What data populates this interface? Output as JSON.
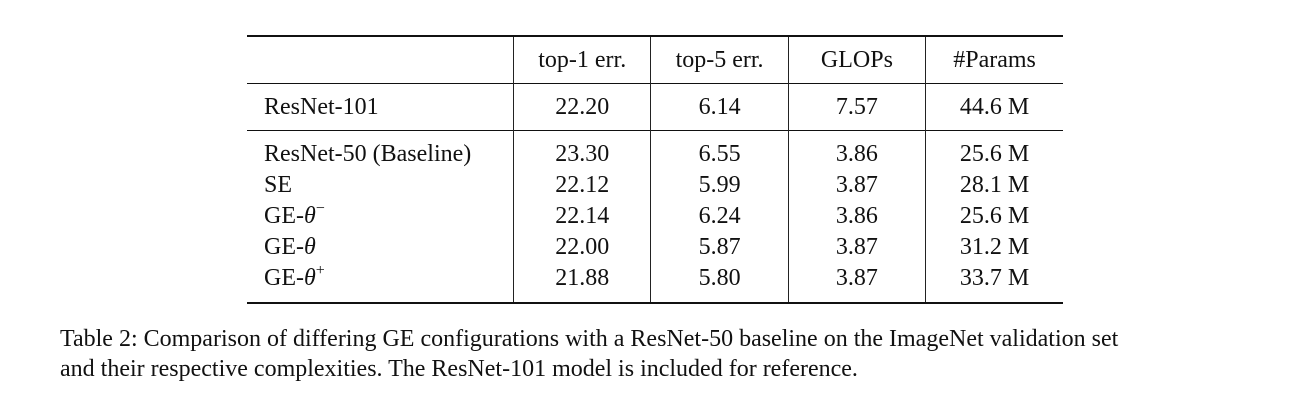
{
  "table": {
    "headers": [
      "",
      "top-1 err.",
      "top-5 err.",
      "GLOPs",
      "#Params"
    ],
    "reference_rows": [
      {
        "model": "ResNet-101",
        "top1": "22.20",
        "top5": "6.14",
        "glops": "7.57",
        "params": "44.6 M"
      }
    ],
    "rows": [
      {
        "model": "ResNet-50 (Baseline)",
        "top1": "23.30",
        "top5": "6.55",
        "glops": "3.86",
        "params": "25.6 M"
      },
      {
        "model": "SE",
        "top1": "22.12",
        "top5": "5.99",
        "glops": "3.87",
        "params": "28.1 M"
      },
      {
        "model_prefix": "GE-",
        "model_symbol": "θ",
        "model_modifier": "−",
        "top1": "22.14",
        "top5": "6.24",
        "glops": "3.86",
        "params": "25.6 M"
      },
      {
        "model_prefix": "GE-",
        "model_symbol": "θ",
        "model_modifier": "",
        "top1": "22.00",
        "top5": "5.87",
        "glops": "3.87",
        "params": "31.2 M"
      },
      {
        "model_prefix": "GE-",
        "model_symbol": "θ",
        "model_modifier": "+",
        "top1": "21.88",
        "top5": "5.80",
        "glops": "3.87",
        "params": "33.7 M"
      }
    ]
  },
  "caption": {
    "line1": "Table 2: Comparison of differing GE configurations with a ResNet-50 baseline on the ImageNet validation set",
    "line2": "and their respective complexities. The ResNet-101 model is included for reference."
  }
}
